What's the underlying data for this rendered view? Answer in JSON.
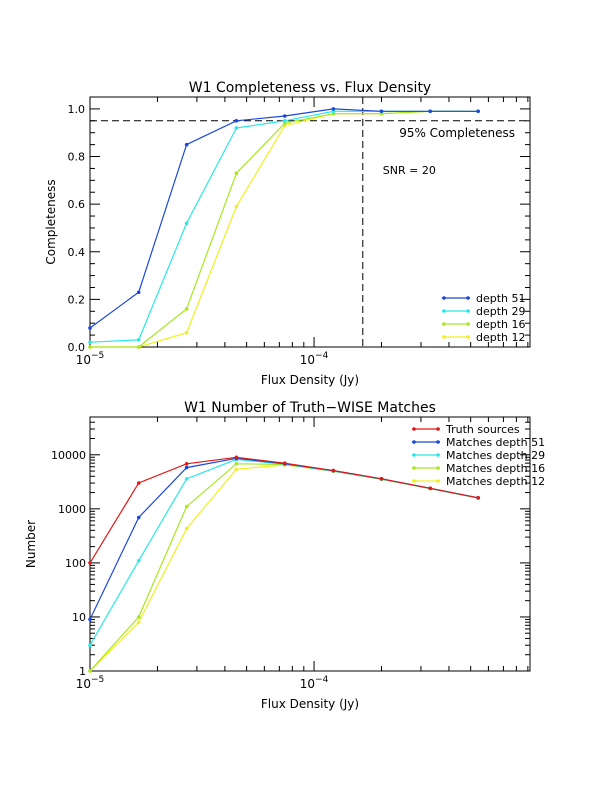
{
  "chart_data": [
    {
      "type": "line",
      "title": "W1 Completeness vs. Flux Density",
      "xlabel": "Flux Density (Jy)",
      "ylabel": "Completeness",
      "xscale": "log",
      "xlim": [
        1e-05,
        0.00092
      ],
      "ylim": [
        0,
        1.05
      ],
      "xticks": [
        {
          "v": 1e-05,
          "base": "10",
          "exp": "−5"
        },
        {
          "v": 0.0001,
          "base": "10",
          "exp": "−4"
        }
      ],
      "yticks": [
        "0.0",
        "0.2",
        "0.4",
        "0.6",
        "0.8",
        "1.0"
      ],
      "x": [
        1e-05,
        1.65e-05,
        2.7e-05,
        4.5e-05,
        7.4e-05,
        0.000122,
        0.0002,
        0.00033,
        0.00054
      ],
      "series": [
        {
          "name": "depth 51",
          "color": "#1c48d8",
          "values": [
            0.08,
            0.23,
            0.85,
            0.95,
            0.97,
            1.0,
            0.99,
            0.99,
            0.99
          ]
        },
        {
          "name": "depth 29",
          "color": "#28e8e8",
          "values": [
            0.02,
            0.03,
            0.52,
            0.92,
            0.95,
            0.99,
            0.99,
            0.99,
            0.99
          ]
        },
        {
          "name": "depth 16",
          "color": "#a8e820",
          "values": [
            0.0,
            0.0,
            0.16,
            0.73,
            0.94,
            0.98,
            0.98,
            0.99,
            0.99
          ]
        },
        {
          "name": "depth 12",
          "color": "#f0f020",
          "values": [
            0.0,
            0.0,
            0.06,
            0.59,
            0.93,
            0.98,
            0.98,
            0.99,
            0.99
          ]
        }
      ],
      "annotations": {
        "completeness_line": 0.95,
        "completeness_label": "95% Completeness",
        "snr_line_x": 0.000165,
        "snr_label": "SNR = 20"
      },
      "legend": "bottom-right"
    },
    {
      "type": "line",
      "title": "W1 Number of Truth−WISE Matches",
      "xlabel": "Flux Density (Jy)",
      "ylabel": "Number",
      "xscale": "log",
      "yscale": "log",
      "xlim": [
        1e-05,
        0.00092
      ],
      "ylim": [
        1,
        50000
      ],
      "xticks": [
        {
          "v": 1e-05,
          "base": "10",
          "exp": "−5"
        },
        {
          "v": 0.0001,
          "base": "10",
          "exp": "−4"
        }
      ],
      "yticks": [
        "1",
        "10",
        "100",
        "1000",
        "10000"
      ],
      "x": [
        1e-05,
        1.65e-05,
        2.7e-05,
        4.5e-05,
        7.4e-05,
        0.000122,
        0.0002,
        0.00033,
        0.00054
      ],
      "series": [
        {
          "name": "Truth sources",
          "color": "#e01818",
          "values": [
            100,
            3000,
            6800,
            9000,
            7000,
            5100,
            3600,
            2400,
            1600
          ]
        },
        {
          "name": "Matches depth 51",
          "color": "#1c48d8",
          "values": [
            9,
            690,
            5800,
            8600,
            6800,
            5100,
            3600,
            2400,
            1600
          ]
        },
        {
          "name": "Matches depth 29",
          "color": "#28e8e8",
          "values": [
            3,
            110,
            3600,
            8200,
            6700,
            5000,
            3550,
            2380,
            1590
          ]
        },
        {
          "name": "Matches depth 16",
          "color": "#a8e820",
          "values": [
            1,
            10,
            1100,
            6800,
            6600,
            5000,
            3550,
            2380,
            1590
          ]
        },
        {
          "name": "Matches depth 12",
          "color": "#f0f020",
          "values": [
            1,
            8,
            430,
            5400,
            6500,
            4950,
            3500,
            2370,
            1580
          ]
        }
      ],
      "legend": "top-right"
    }
  ]
}
